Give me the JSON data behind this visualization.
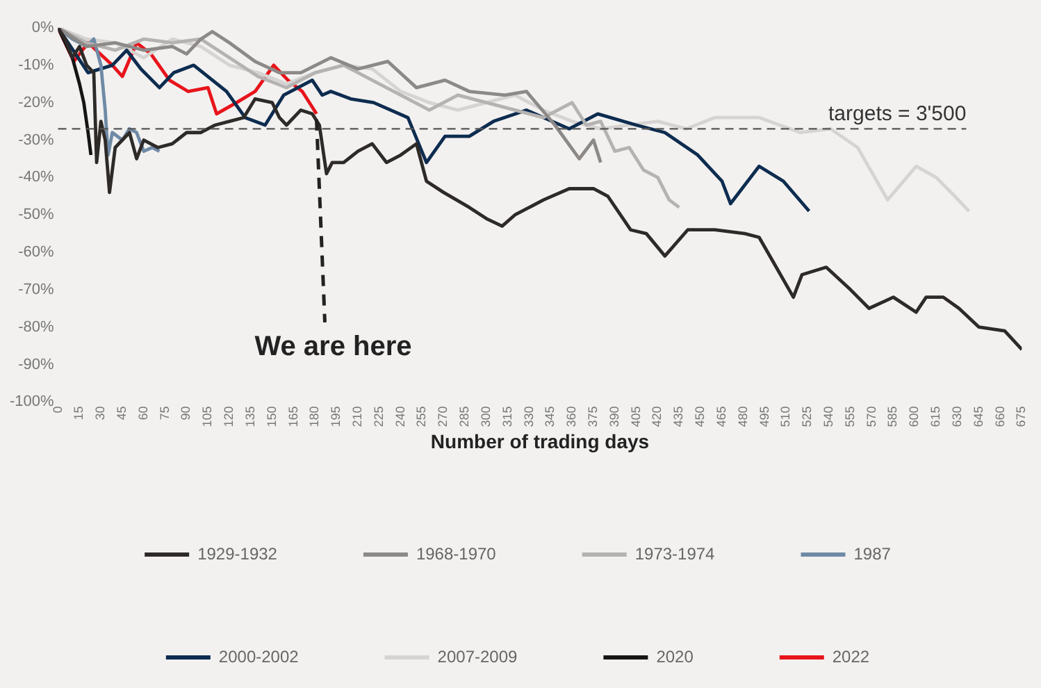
{
  "chart_data": {
    "type": "line",
    "xlabel": "Number of trading days",
    "xlim": [
      0,
      675
    ],
    "xticks": [
      0,
      15,
      30,
      45,
      60,
      75,
      90,
      105,
      120,
      135,
      150,
      165,
      180,
      195,
      210,
      225,
      240,
      255,
      270,
      285,
      300,
      315,
      330,
      345,
      360,
      375,
      390,
      405,
      420,
      435,
      450,
      465,
      480,
      495,
      510,
      525,
      540,
      555,
      570,
      585,
      600,
      615,
      630,
      645,
      660,
      675
    ],
    "ylim": [
      -100,
      0
    ],
    "yticks": [
      {
        "value": 0,
        "label": "0%"
      },
      {
        "value": -10,
        "label": "-10%"
      },
      {
        "value": -20,
        "label": "-20%"
      },
      {
        "value": -30,
        "label": "-30%"
      },
      {
        "value": -40,
        "label": "-40%"
      },
      {
        "value": -50,
        "label": "-50%"
      },
      {
        "value": -60,
        "label": "-60%"
      },
      {
        "value": -70,
        "label": "-70%"
      },
      {
        "value": -80,
        "label": "-80%"
      },
      {
        "value": -90,
        "label": "-90%"
      },
      {
        "value": -100,
        "label": "-100%"
      }
    ],
    "grid": false,
    "legend": "bottom",
    "marker": "none",
    "line_style": "solid",
    "ref_lines": [
      {
        "axis": "y",
        "value": -27,
        "color": "#555555",
        "line_style": "dashed"
      }
    ],
    "annotations": [
      "targets = 3'500",
      {
        "text": "We are here",
        "x": 181,
        "y": -23
      }
    ],
    "series": [
      {
        "name": "1929-1932",
        "color": "#2e2a28",
        "x": [
          0,
          5,
          10,
          15,
          20,
          25,
          27,
          30,
          33,
          36,
          40,
          45,
          50,
          55,
          60,
          70,
          80,
          90,
          100,
          110,
          120,
          130,
          138,
          150,
          155,
          160,
          170,
          178,
          183,
          188,
          192,
          200,
          210,
          220,
          230,
          240,
          251,
          258,
          270,
          288,
          300,
          311,
          320,
          340,
          358,
          375,
          385,
          401,
          412,
          425,
          441,
          460,
          481,
          491,
          500,
          515,
          521,
          538,
          555,
          568,
          585,
          601,
          608,
          620,
          631,
          645,
          663,
          675
        ],
        "values": [
          0,
          -3,
          -8,
          -5,
          -10,
          -12,
          -36,
          -25,
          -30,
          -44,
          -32,
          -30,
          -28,
          -35,
          -30,
          -32,
          -31,
          -28,
          -28,
          -26,
          -25,
          -24,
          -19,
          -20,
          -24,
          -26,
          -22,
          -23,
          -26,
          -39,
          -36,
          -36,
          -33,
          -31,
          -36,
          -34,
          -31,
          -41,
          -44,
          -48,
          -51,
          -53,
          -50,
          -46,
          -43,
          -43,
          -45,
          -54,
          -55,
          -61,
          -54,
          -54,
          -55,
          -56,
          -62,
          -72,
          -66,
          -64,
          -70,
          -75,
          -72,
          -76,
          -72,
          -72,
          -75,
          -80,
          -81,
          -86
        ]
      },
      {
        "name": "1968-1970",
        "color": "#8c8987",
        "x": [
          0,
          20,
          40,
          60,
          80,
          90,
          100,
          108,
          120,
          138,
          155,
          170,
          191,
          210,
          231,
          251,
          271,
          288,
          313,
          328,
          348,
          365,
          375,
          380
        ],
        "values": [
          0,
          -5,
          -4,
          -6,
          -5,
          -7,
          -3,
          -1,
          -4,
          -9,
          -12,
          -12,
          -8,
          -11,
          -9,
          -16,
          -14,
          -17,
          -18,
          -17,
          -26,
          -35,
          -30,
          -36
        ]
      },
      {
        "name": "1973-1974",
        "color": "#b5b3b1",
        "x": [
          0,
          20,
          40,
          60,
          80,
          100,
          120,
          140,
          160,
          180,
          200,
          220,
          240,
          260,
          280,
          300,
          320,
          340,
          360,
          370,
          380,
          390,
          400,
          410,
          420,
          428,
          435
        ],
        "values": [
          0,
          -4,
          -6,
          -3,
          -4,
          -3,
          -8,
          -13,
          -16,
          -12,
          -10,
          -14,
          -18,
          -22,
          -18,
          -20,
          -22,
          -24,
          -20,
          -26,
          -25,
          -33,
          -32,
          -38,
          -40,
          -46,
          -48
        ]
      },
      {
        "name": "1987",
        "color": "#6f8aa6",
        "x": [
          0,
          10,
          20,
          25,
          30,
          33,
          35,
          38,
          45,
          50,
          55,
          60,
          66,
          71
        ],
        "values": [
          0,
          -3,
          -5,
          -3,
          -10,
          -22,
          -34,
          -28,
          -30,
          -27,
          -28,
          -33,
          -32,
          -33
        ]
      },
      {
        "name": "2000-2002",
        "color": "#0d2c4f",
        "x": [
          0,
          21,
          38,
          48,
          58,
          71,
          81,
          95,
          118,
          131,
          145,
          158,
          178,
          185,
          191,
          205,
          221,
          245,
          258,
          271,
          288,
          305,
          328,
          358,
          378,
          405,
          425,
          448,
          465,
          471,
          491,
          508,
          526
        ],
        "values": [
          0,
          -12,
          -10,
          -6,
          -11,
          -16,
          -12,
          -10,
          -17,
          -24,
          -26,
          -18,
          -14,
          -18,
          -17,
          -19,
          -20,
          -24,
          -36,
          -29,
          -29,
          -25,
          -22,
          -27,
          -23,
          -26,
          -28,
          -34,
          -41,
          -47,
          -37,
          -41,
          -49
        ]
      },
      {
        "name": "2007-2009",
        "color": "#d6d4d2",
        "x": [
          0,
          20,
          40,
          60,
          80,
          100,
          120,
          140,
          160,
          180,
          200,
          220,
          240,
          260,
          280,
          300,
          320,
          340,
          360,
          380,
          400,
          420,
          440,
          460,
          491,
          520,
          541,
          560,
          581,
          601,
          615,
          628,
          638
        ],
        "values": [
          0,
          -3,
          -4,
          -8,
          -3,
          -5,
          -10,
          -12,
          -15,
          -12,
          -10,
          -11,
          -17,
          -20,
          -22,
          -20,
          -18,
          -22,
          -25,
          -27,
          -26,
          -25,
          -27,
          -24,
          -24,
          -28,
          -27,
          -32,
          -46,
          -37,
          -40,
          -45,
          -49
        ]
      },
      {
        "name": "2020",
        "color": "#151515",
        "x": [
          0,
          5,
          10,
          15,
          18,
          21,
          23
        ],
        "values": [
          0,
          -4,
          -8,
          -15,
          -20,
          -28,
          -34
        ]
      },
      {
        "name": "2022",
        "color": "#e8141b",
        "x": [
          0,
          11,
          21,
          38,
          45,
          55,
          65,
          78,
          91,
          105,
          111,
          125,
          138,
          151,
          161,
          171,
          181
        ],
        "values": [
          0,
          -9,
          -4,
          -10,
          -13,
          -4,
          -7,
          -14,
          -17,
          -16,
          -23,
          -20,
          -17,
          -10,
          -14,
          -17,
          -23
        ]
      }
    ]
  }
}
